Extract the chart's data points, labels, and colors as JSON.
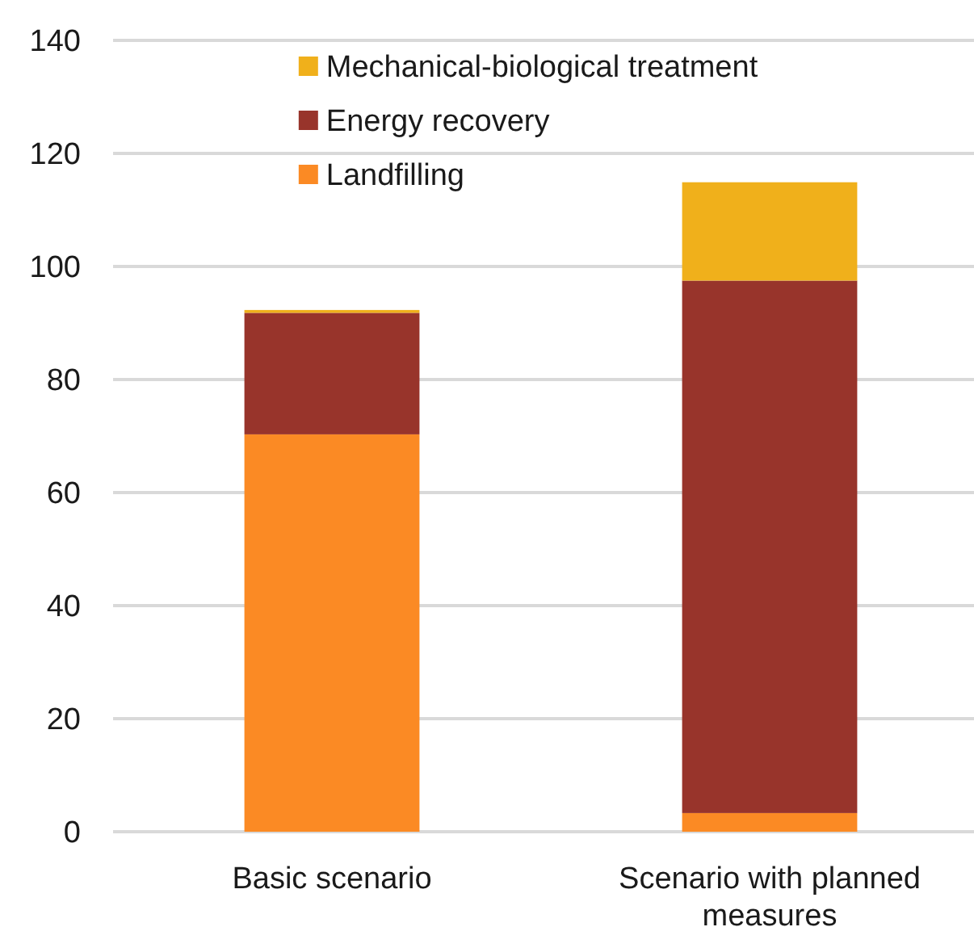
{
  "chart_data": {
    "type": "bar",
    "stacked": true,
    "categories": [
      "Basic scenario",
      "Scenario with planned measures"
    ],
    "series": [
      {
        "name": "Landfilling",
        "color": "#fb8a24",
        "values": [
          70.3,
          3.3
        ]
      },
      {
        "name": "Energy recovery",
        "color": "#98342b",
        "values": [
          21.5,
          94.2
        ]
      },
      {
        "name": "Mechanical-biological treatment",
        "color": "#f0b01b",
        "values": [
          0.5,
          17.4
        ]
      }
    ],
    "ylim": [
      0,
      140
    ],
    "yticks": [
      0,
      20,
      40,
      60,
      80,
      100,
      120,
      140
    ],
    "grid": "y",
    "legend": "top"
  }
}
